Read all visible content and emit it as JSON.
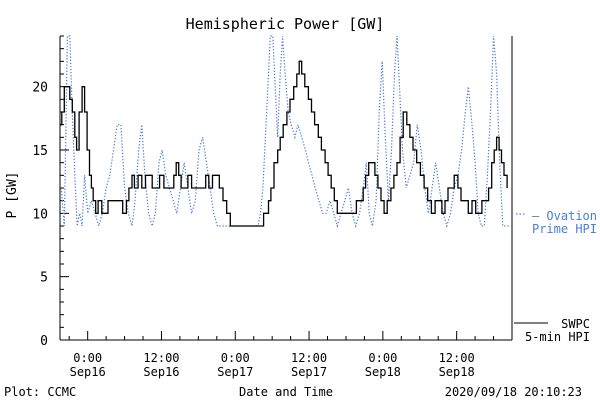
{
  "chart_data": {
    "type": "line",
    "title": "Hemispheric Power [GW]",
    "xlabel": "Date and Time",
    "ylabel": "P [GW]",
    "ylim": [
      0,
      24
    ],
    "xlim": [
      -4.5,
      69
    ],
    "yticks": [
      0,
      5,
      10,
      15,
      20
    ],
    "xticks": [
      {
        "x": 0,
        "time": "0:00",
        "date": "Sep16"
      },
      {
        "x": 12,
        "time": "12:00",
        "date": "Sep16"
      },
      {
        "x": 24,
        "time": "0:00",
        "date": "Sep17"
      },
      {
        "x": 36,
        "time": "12:00",
        "date": "Sep17"
      },
      {
        "x": 48,
        "time": "0:00",
        "date": "Sep18"
      },
      {
        "x": 60,
        "time": "12:00",
        "date": "Sep18"
      }
    ],
    "series": [
      {
        "name": "SWPC 5-min HPI",
        "color": "#000000",
        "style": "solid-step",
        "points": [
          [
            -4.5,
            17
          ],
          [
            -4.2,
            18
          ],
          [
            -3.8,
            20
          ],
          [
            -3.3,
            20
          ],
          [
            -2.9,
            19
          ],
          [
            -2.5,
            18
          ],
          [
            -2.1,
            16
          ],
          [
            -1.8,
            15
          ],
          [
            -1.4,
            18
          ],
          [
            -0.9,
            20
          ],
          [
            -0.5,
            18
          ],
          [
            -0.1,
            15
          ],
          [
            0.3,
            13
          ],
          [
            0.6,
            12
          ],
          [
            0.9,
            11
          ],
          [
            1.3,
            10
          ],
          [
            1.7,
            11
          ],
          [
            2.3,
            10
          ],
          [
            2.8,
            10
          ],
          [
            3.3,
            11
          ],
          [
            4.2,
            11
          ],
          [
            5.1,
            11
          ],
          [
            5.7,
            10
          ],
          [
            6.3,
            11
          ],
          [
            6.7,
            12
          ],
          [
            7.2,
            13
          ],
          [
            7.6,
            12
          ],
          [
            8.2,
            13
          ],
          [
            8.8,
            12
          ],
          [
            9.4,
            13
          ],
          [
            10.0,
            13
          ],
          [
            10.5,
            12
          ],
          [
            11.3,
            12
          ],
          [
            11.7,
            13
          ],
          [
            12.4,
            12
          ],
          [
            13.0,
            12
          ],
          [
            13.6,
            12
          ],
          [
            14.0,
            13
          ],
          [
            14.4,
            14
          ],
          [
            14.8,
            13
          ],
          [
            15.2,
            12
          ],
          [
            15.8,
            12
          ],
          [
            16.3,
            13
          ],
          [
            16.9,
            12
          ],
          [
            17.4,
            12
          ],
          [
            18.0,
            12
          ],
          [
            18.6,
            12
          ],
          [
            19.2,
            13
          ],
          [
            19.7,
            12
          ],
          [
            20.3,
            13
          ],
          [
            20.8,
            13
          ],
          [
            21.4,
            12
          ],
          [
            22.0,
            11
          ],
          [
            22.6,
            10
          ],
          [
            23.2,
            9
          ],
          [
            24.0,
            9
          ],
          [
            24.8,
            9
          ],
          [
            25.6,
            9
          ],
          [
            26.4,
            9
          ],
          [
            27.2,
            9
          ],
          [
            28.0,
            9
          ],
          [
            28.6,
            10
          ],
          [
            29.0,
            10
          ],
          [
            29.4,
            11
          ],
          [
            29.8,
            12
          ],
          [
            30.3,
            14
          ],
          [
            30.9,
            15
          ],
          [
            31.3,
            16
          ],
          [
            31.8,
            17
          ],
          [
            32.4,
            18
          ],
          [
            32.9,
            19
          ],
          [
            33.5,
            20
          ],
          [
            34.0,
            21
          ],
          [
            34.4,
            22
          ],
          [
            34.8,
            21
          ],
          [
            35.3,
            20
          ],
          [
            35.9,
            19
          ],
          [
            36.4,
            18
          ],
          [
            36.9,
            17
          ],
          [
            37.5,
            16
          ],
          [
            38.0,
            15
          ],
          [
            38.6,
            14
          ],
          [
            39.1,
            13
          ],
          [
            39.6,
            12
          ],
          [
            40.1,
            11
          ],
          [
            40.6,
            10
          ],
          [
            41.1,
            10
          ],
          [
            41.6,
            10
          ],
          [
            42.1,
            10
          ],
          [
            42.7,
            10
          ],
          [
            43.2,
            10
          ],
          [
            43.7,
            11
          ],
          [
            44.3,
            11
          ],
          [
            44.8,
            12
          ],
          [
            45.2,
            13
          ],
          [
            45.7,
            14
          ],
          [
            46.2,
            14
          ],
          [
            46.7,
            13
          ],
          [
            47.2,
            12
          ],
          [
            47.7,
            11
          ],
          [
            48.2,
            10
          ],
          [
            48.7,
            11
          ],
          [
            49.3,
            12
          ],
          [
            49.8,
            13
          ],
          [
            50.3,
            14
          ],
          [
            50.8,
            16
          ],
          [
            51.3,
            18
          ],
          [
            51.9,
            17
          ],
          [
            52.4,
            16
          ],
          [
            52.9,
            15
          ],
          [
            53.5,
            14
          ],
          [
            54.1,
            13
          ],
          [
            54.7,
            12
          ],
          [
            55.3,
            11
          ],
          [
            55.9,
            10
          ],
          [
            56.5,
            11
          ],
          [
            57.0,
            11
          ],
          [
            57.6,
            10
          ],
          [
            58.1,
            11
          ],
          [
            58.6,
            12
          ],
          [
            59.1,
            12
          ],
          [
            59.6,
            13
          ],
          [
            60.2,
            12
          ],
          [
            60.7,
            11
          ],
          [
            61.3,
            11
          ],
          [
            61.9,
            10
          ],
          [
            62.5,
            11
          ],
          [
            63.1,
            10
          ],
          [
            63.6,
            10
          ],
          [
            64.1,
            11
          ],
          [
            64.7,
            11
          ],
          [
            65.2,
            12
          ],
          [
            65.7,
            14
          ],
          [
            66.1,
            15
          ],
          [
            66.5,
            16
          ],
          [
            66.9,
            15
          ],
          [
            67.3,
            14
          ],
          [
            67.7,
            13
          ],
          [
            68.2,
            12
          ]
        ]
      },
      {
        "name": "Ovation Prime HPI",
        "color": "#4a7fd4",
        "style": "dotted",
        "points": [
          [
            -4.3,
            12
          ],
          [
            -3.8,
            9
          ],
          [
            -3.3,
            24
          ],
          [
            -2.9,
            24
          ],
          [
            -2.5,
            18
          ],
          [
            -2.1,
            13
          ],
          [
            -1.7,
            9
          ],
          [
            -1.3,
            10
          ],
          [
            -0.9,
            9
          ],
          [
            -0.5,
            13
          ],
          [
            0.0,
            10
          ],
          [
            0.6,
            11
          ],
          [
            1.2,
            10
          ],
          [
            1.8,
            9
          ],
          [
            2.4,
            10
          ],
          [
            3.0,
            12
          ],
          [
            3.6,
            13
          ],
          [
            4.2,
            15
          ],
          [
            4.8,
            17
          ],
          [
            5.4,
            17
          ],
          [
            6.0,
            12
          ],
          [
            6.6,
            10
          ],
          [
            7.2,
            9
          ],
          [
            7.7,
            11
          ],
          [
            8.3,
            15
          ],
          [
            8.8,
            17
          ],
          [
            9.3,
            13
          ],
          [
            9.9,
            10
          ],
          [
            10.5,
            9
          ],
          [
            11.0,
            10
          ],
          [
            11.6,
            14
          ],
          [
            12.1,
            15
          ],
          [
            12.7,
            13
          ],
          [
            13.3,
            12
          ],
          [
            13.9,
            11
          ],
          [
            14.5,
            10
          ],
          [
            15.1,
            12
          ],
          [
            15.7,
            14
          ],
          [
            16.3,
            12
          ],
          [
            16.9,
            10
          ],
          [
            17.5,
            11
          ],
          [
            18.1,
            15
          ],
          [
            18.7,
            16
          ],
          [
            19.3,
            14
          ],
          [
            19.9,
            12
          ],
          [
            20.5,
            10
          ],
          [
            21.1,
            9
          ],
          [
            21.7,
            9
          ],
          [
            22.3,
            9
          ],
          [
            22.9,
            9
          ],
          [
            23.5,
            9
          ],
          [
            24.1,
            9
          ],
          [
            24.7,
            9
          ],
          [
            25.3,
            9
          ],
          [
            25.9,
            9
          ],
          [
            26.5,
            9
          ],
          [
            27.1,
            9
          ],
          [
            27.7,
            9
          ],
          [
            28.1,
            10
          ],
          [
            28.5,
            12
          ],
          [
            28.9,
            16
          ],
          [
            29.3,
            20
          ],
          [
            29.7,
            24
          ],
          [
            30.1,
            24
          ],
          [
            30.5,
            20
          ],
          [
            30.9,
            16
          ],
          [
            31.3,
            21
          ],
          [
            31.7,
            24
          ],
          [
            32.1,
            21
          ],
          [
            32.6,
            18
          ],
          [
            33.1,
            17
          ],
          [
            33.7,
            16
          ],
          [
            34.2,
            17
          ],
          [
            34.8,
            16
          ],
          [
            35.4,
            15
          ],
          [
            35.9,
            14
          ],
          [
            36.5,
            13
          ],
          [
            37.0,
            12
          ],
          [
            37.6,
            11
          ],
          [
            38.2,
            10
          ],
          [
            38.8,
            10
          ],
          [
            39.4,
            11
          ],
          [
            40.0,
            10
          ],
          [
            40.6,
            9
          ],
          [
            41.2,
            10
          ],
          [
            41.8,
            11
          ],
          [
            42.4,
            12
          ],
          [
            43.0,
            10
          ],
          [
            43.6,
            9
          ],
          [
            44.2,
            10
          ],
          [
            44.8,
            12
          ],
          [
            45.3,
            14
          ],
          [
            45.8,
            10
          ],
          [
            46.3,
            9
          ],
          [
            46.9,
            11
          ],
          [
            47.4,
            18
          ],
          [
            47.9,
            22
          ],
          [
            48.4,
            16
          ],
          [
            48.9,
            11
          ],
          [
            49.4,
            15
          ],
          [
            49.9,
            21
          ],
          [
            50.3,
            24
          ],
          [
            50.7,
            20
          ],
          [
            51.2,
            15
          ],
          [
            51.8,
            12
          ],
          [
            52.4,
            13
          ],
          [
            53.0,
            14
          ],
          [
            53.6,
            17
          ],
          [
            54.2,
            15
          ],
          [
            54.8,
            12
          ],
          [
            55.4,
            10
          ],
          [
            56.0,
            12
          ],
          [
            56.6,
            14
          ],
          [
            57.2,
            12
          ],
          [
            57.8,
            10
          ],
          [
            58.4,
            9
          ],
          [
            59.0,
            10
          ],
          [
            59.6,
            12
          ],
          [
            60.2,
            13
          ],
          [
            60.8,
            15
          ],
          [
            61.4,
            18
          ],
          [
            61.9,
            20
          ],
          [
            62.5,
            17
          ],
          [
            63.0,
            14
          ],
          [
            63.5,
            10
          ],
          [
            64.0,
            9
          ],
          [
            64.5,
            9
          ],
          [
            65.0,
            13
          ],
          [
            65.5,
            18
          ],
          [
            66.0,
            24
          ],
          [
            66.5,
            21
          ],
          [
            67.0,
            14
          ],
          [
            67.5,
            9
          ],
          [
            68.0,
            9
          ],
          [
            68.6,
            9
          ]
        ]
      }
    ],
    "legend": {
      "placement": "right",
      "ovation": [
        "— Ovation",
        "Prime HPI"
      ],
      "swpc": [
        "SWPC",
        "5-min HPI"
      ]
    }
  },
  "footer": {
    "plot_credit": "Plot: CCMC",
    "timestamp": "2020/09/18 20:10:23"
  }
}
